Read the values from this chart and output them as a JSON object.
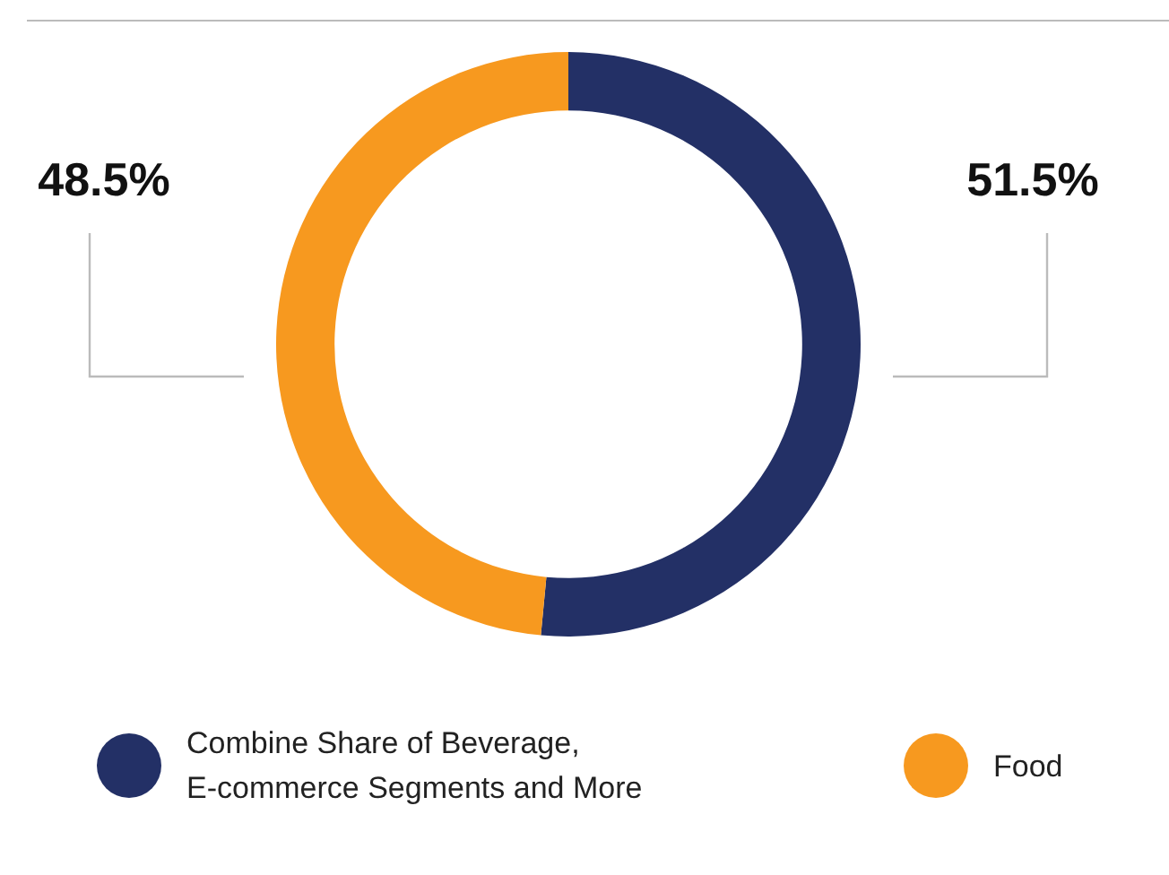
{
  "chart_data": {
    "type": "donut",
    "categories": [
      "Combine Share of Beverage, E-commerce Segments and More",
      "Food"
    ],
    "values": [
      51.5,
      48.5
    ],
    "colors": [
      "#233066",
      "#f7991f"
    ],
    "value_labels": [
      "51.5%",
      "48.5%"
    ],
    "legend": "bottom"
  }
}
